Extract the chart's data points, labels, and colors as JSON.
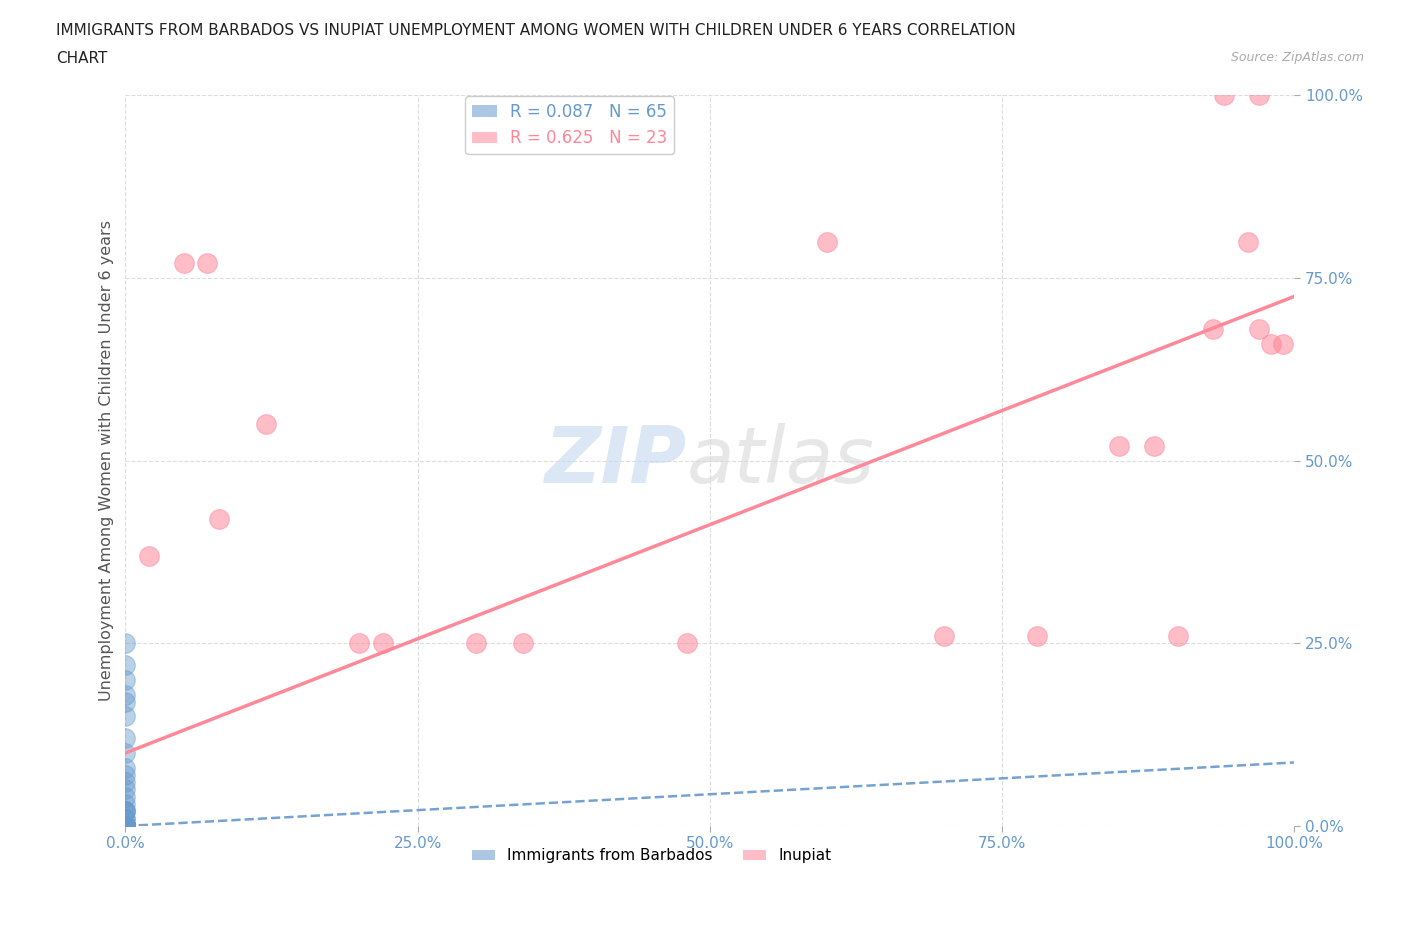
{
  "title_line1": "IMMIGRANTS FROM BARBADOS VS INUPIAT UNEMPLOYMENT AMONG WOMEN WITH CHILDREN UNDER 6 YEARS CORRELATION",
  "title_line2": "CHART",
  "source": "Source: ZipAtlas.com",
  "ylabel": "Unemployment Among Women with Children Under 6 years",
  "xlim": [
    0,
    1.0
  ],
  "ylim": [
    0,
    1.0
  ],
  "xticks": [
    0.0,
    0.25,
    0.5,
    0.75,
    1.0
  ],
  "yticks": [
    0.0,
    0.25,
    0.5,
    0.75,
    1.0
  ],
  "xticklabels": [
    "0.0%",
    "25.0%",
    "50.0%",
    "75.0%",
    "100.0%"
  ],
  "yticklabels": [
    "0.0%",
    "25.0%",
    "50.0%",
    "75.0%",
    "100.0%"
  ],
  "barbados_color": "#6699cc",
  "inupiat_color": "#ff8899",
  "barbados_R": 0.087,
  "barbados_N": 65,
  "inupiat_R": 0.625,
  "inupiat_N": 23,
  "background_color": "#ffffff",
  "grid_color": "#dddddd",
  "barbados_line": [
    0.0,
    0.0,
    1.0,
    0.087
  ],
  "inupiat_line": [
    0.0,
    0.1,
    1.0,
    0.725
  ],
  "barbados_points_x": [
    0.0,
    0.0,
    0.0,
    0.0,
    0.0,
    0.0,
    0.0,
    0.0,
    0.0,
    0.0,
    0.0,
    0.0,
    0.0,
    0.0,
    0.0,
    0.0,
    0.0,
    0.0,
    0.0,
    0.0,
    0.0,
    0.0,
    0.0,
    0.0,
    0.0,
    0.0,
    0.0,
    0.0,
    0.0,
    0.0,
    0.0,
    0.0,
    0.0,
    0.0,
    0.0,
    0.0,
    0.0,
    0.0,
    0.0,
    0.0,
    0.0,
    0.0,
    0.0,
    0.0,
    0.0,
    0.0,
    0.0,
    0.0,
    0.0,
    0.0,
    0.0,
    0.0,
    0.0,
    0.0,
    0.0,
    0.0,
    0.0,
    0.0,
    0.0,
    0.0,
    0.0,
    0.0,
    0.0,
    0.0,
    0.0
  ],
  "barbados_points_y": [
    0.0,
    0.0,
    0.0,
    0.0,
    0.0,
    0.0,
    0.0,
    0.0,
    0.0,
    0.0,
    0.02,
    0.02,
    0.02,
    0.03,
    0.04,
    0.05,
    0.06,
    0.07,
    0.08,
    0.0,
    0.0,
    0.0,
    0.0,
    0.01,
    0.01,
    0.0,
    0.0,
    0.0,
    0.0,
    0.0,
    0.0,
    0.0,
    0.0,
    0.0,
    0.0,
    0.0,
    0.0,
    0.0,
    0.0,
    0.0,
    0.0,
    0.0,
    0.0,
    0.0,
    0.0,
    0.0,
    0.0,
    0.0,
    0.0,
    0.0,
    0.0,
    0.0,
    0.0,
    0.0,
    0.0,
    0.0,
    0.0,
    0.15,
    0.2,
    0.18,
    0.22,
    0.12,
    0.1,
    0.25,
    0.17
  ],
  "inupiat_points_x": [
    0.02,
    0.05,
    0.07,
    0.08,
    0.12,
    0.2,
    0.22,
    0.3,
    0.34,
    0.48,
    0.6,
    0.7,
    0.78,
    0.85,
    0.88,
    0.9,
    0.93,
    0.94,
    0.97,
    0.96,
    0.97,
    0.98,
    0.99
  ],
  "inupiat_points_y": [
    0.37,
    0.77,
    0.77,
    0.42,
    0.55,
    0.25,
    0.25,
    0.25,
    0.25,
    0.25,
    0.8,
    0.26,
    0.26,
    0.52,
    0.52,
    0.26,
    0.68,
    1.0,
    1.0,
    0.8,
    0.68,
    0.66,
    0.66
  ]
}
